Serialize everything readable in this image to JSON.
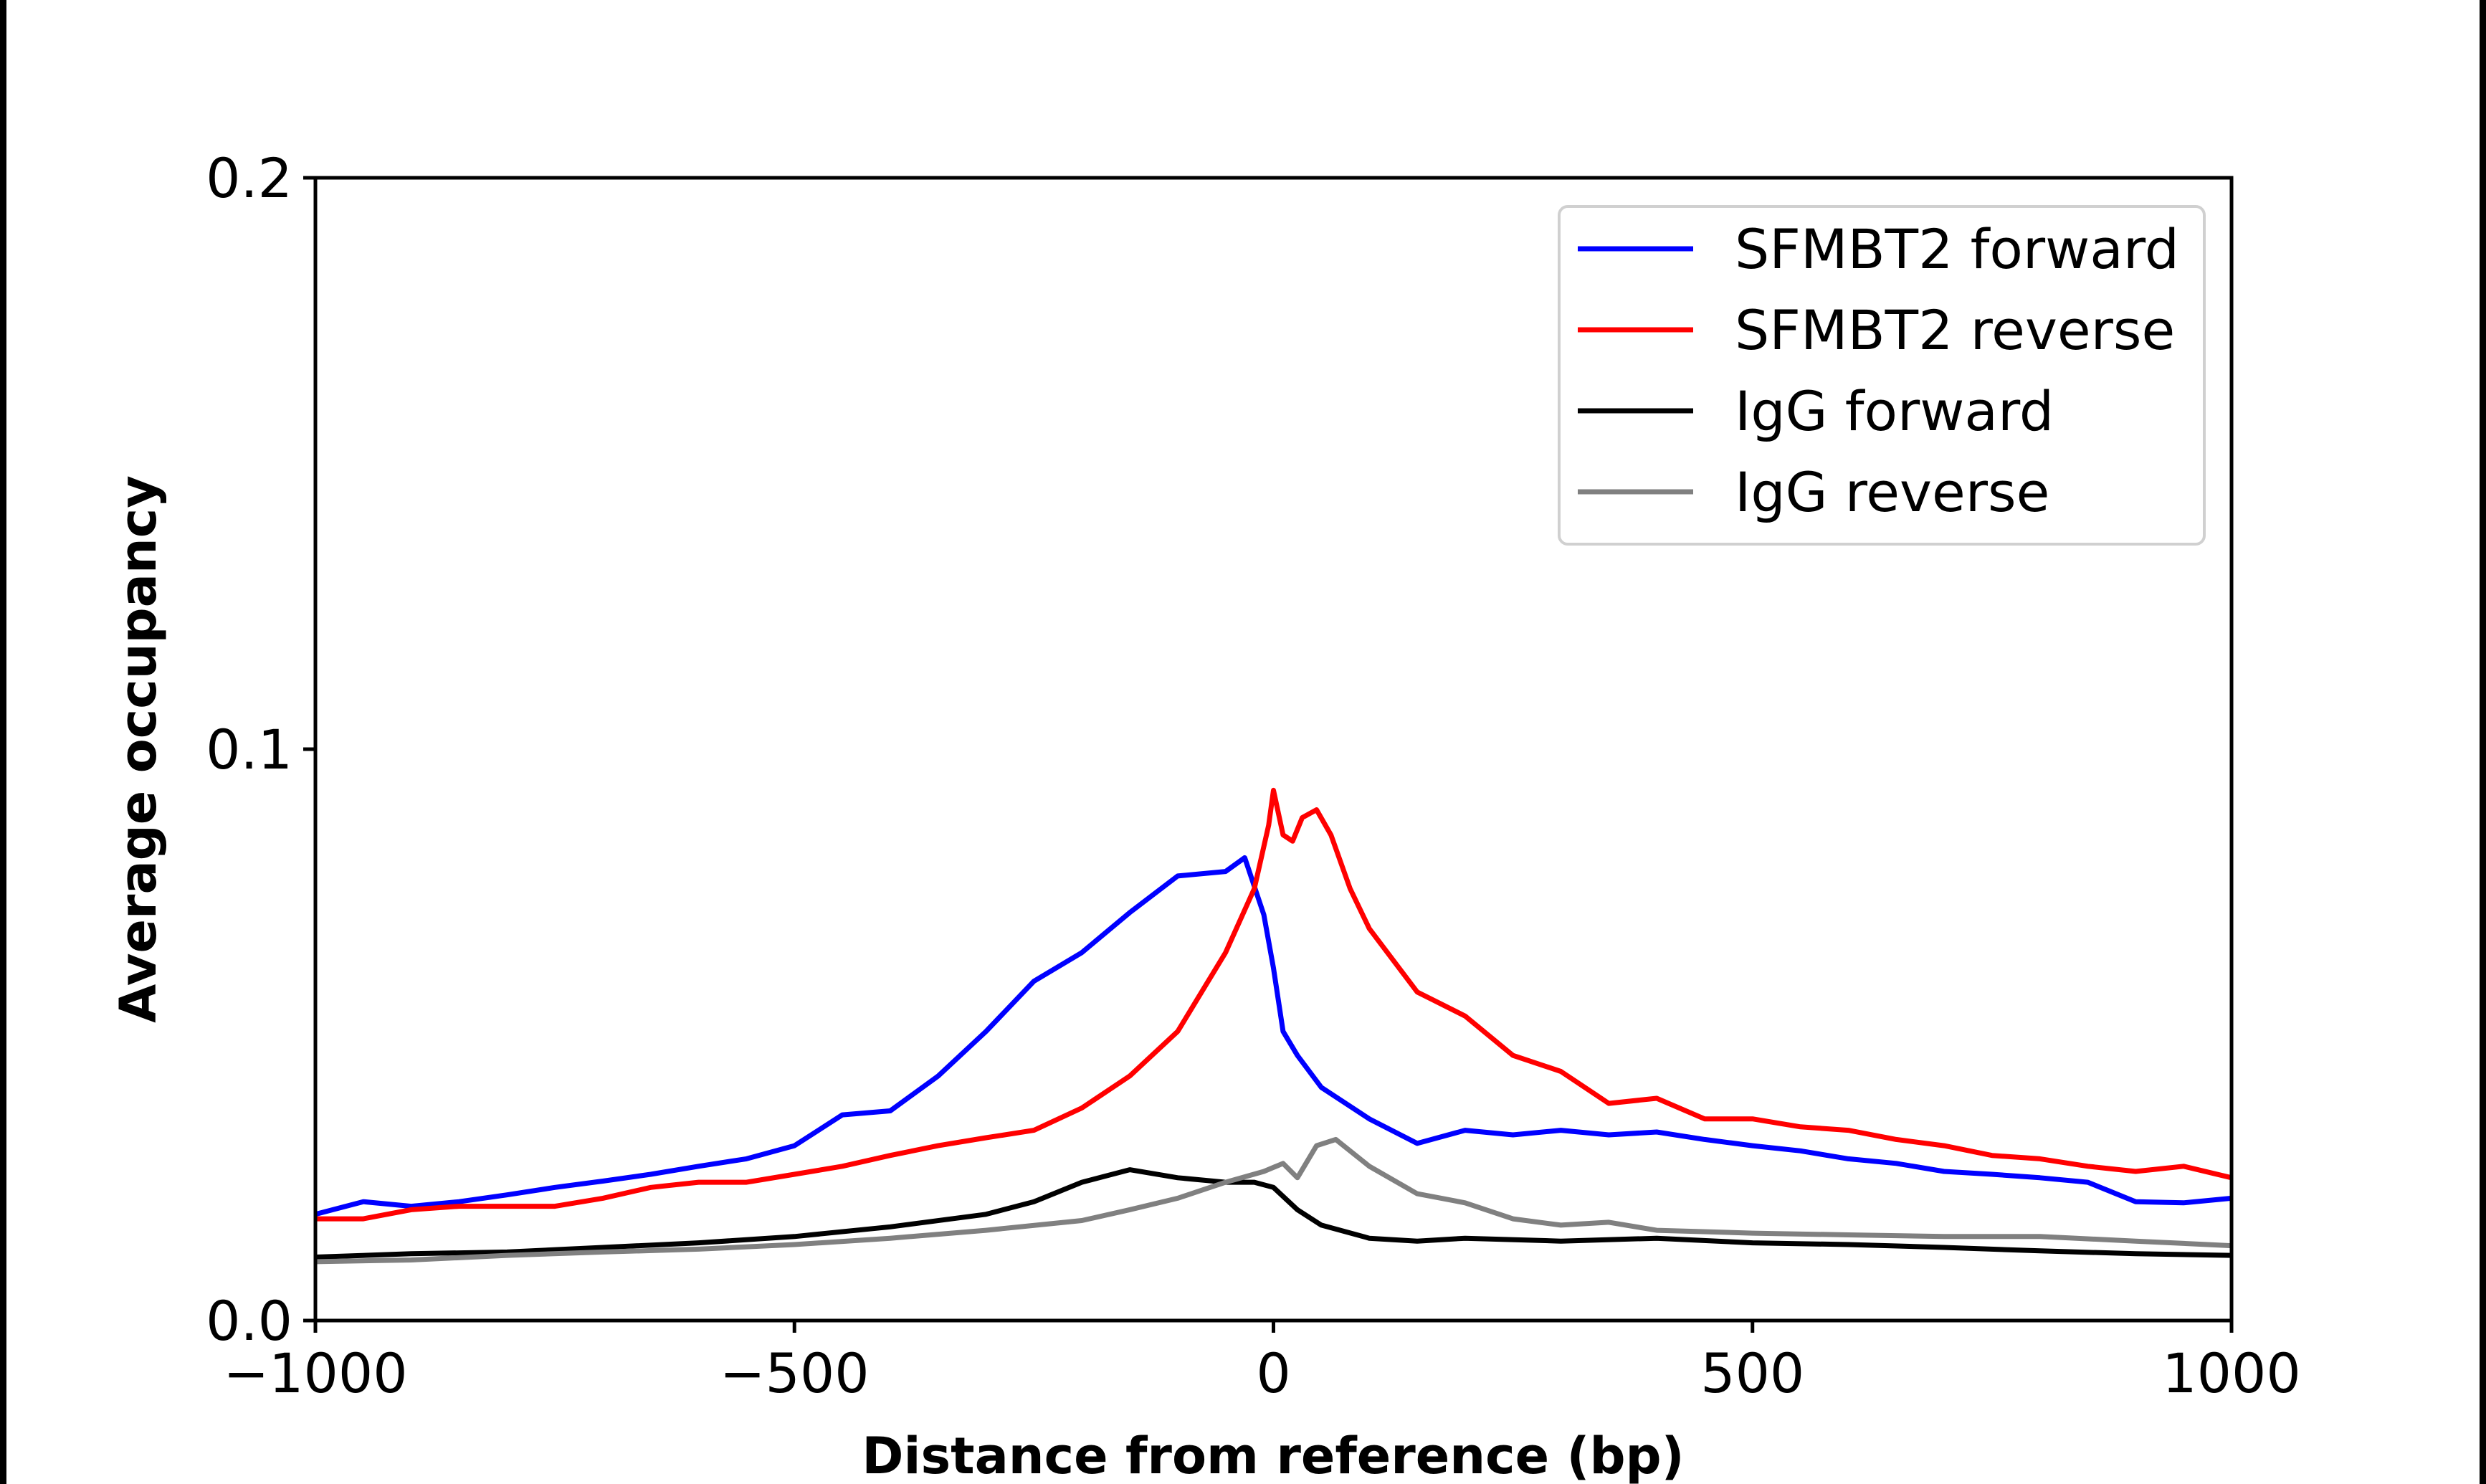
{
  "chart_data": {
    "type": "line",
    "title": "",
    "xlabel": "Distance from reference (bp)",
    "ylabel": "Average occupancy",
    "xlim": [
      -1000,
      1000
    ],
    "ylim": [
      0,
      0.2
    ],
    "xticks": [
      -1000,
      -500,
      0,
      500,
      1000
    ],
    "xtick_labels": [
      "−1000",
      "−500",
      "0",
      "500",
      "1000"
    ],
    "yticks": [
      0,
      0.1,
      0.2
    ],
    "ytick_labels": [
      "0.0",
      "0.1",
      "0.2"
    ],
    "grid": false,
    "legend_position": "top-right",
    "series": [
      {
        "name": "SFMBT2 forward",
        "color": "#0000ff",
        "x": [
          -1000,
          -950,
          -900,
          -850,
          -800,
          -750,
          -700,
          -650,
          -600,
          -550,
          -500,
          -450,
          -400,
          -350,
          -300,
          -250,
          -200,
          -150,
          -100,
          -50,
          -30,
          -10,
          0,
          10,
          25,
          50,
          100,
          150,
          200,
          250,
          300,
          350,
          400,
          450,
          500,
          550,
          600,
          650,
          700,
          750,
          800,
          850,
          900,
          950,
          1000
        ],
        "y": [
          0.0186,
          0.0208,
          0.02,
          0.0208,
          0.022,
          0.0233,
          0.0244,
          0.0256,
          0.027,
          0.0283,
          0.0306,
          0.036,
          0.0367,
          0.0428,
          0.0506,
          0.0594,
          0.0644,
          0.0714,
          0.0778,
          0.0786,
          0.081,
          0.071,
          0.0617,
          0.0506,
          0.0464,
          0.0408,
          0.0353,
          0.031,
          0.0333,
          0.0325,
          0.0333,
          0.0325,
          0.033,
          0.0317,
          0.0306,
          0.0297,
          0.0283,
          0.0275,
          0.0261,
          0.0256,
          0.025,
          0.0242,
          0.0208,
          0.0206,
          0.0214
        ]
      },
      {
        "name": "SFMBT2 reverse",
        "color": "#ff0000",
        "x": [
          -1000,
          -950,
          -900,
          -850,
          -800,
          -750,
          -700,
          -650,
          -600,
          -550,
          -500,
          -450,
          -400,
          -350,
          -300,
          -250,
          -200,
          -150,
          -100,
          -50,
          -20,
          -5,
          0,
          10,
          20,
          30,
          45,
          60,
          80,
          100,
          150,
          200,
          250,
          300,
          350,
          400,
          450,
          500,
          550,
          600,
          650,
          700,
          750,
          800,
          850,
          900,
          950,
          1000
        ],
        "y": [
          0.0178,
          0.0178,
          0.0194,
          0.02,
          0.02,
          0.02,
          0.0214,
          0.0233,
          0.0242,
          0.0242,
          0.0256,
          0.027,
          0.0289,
          0.0306,
          0.032,
          0.0333,
          0.0372,
          0.0428,
          0.0506,
          0.0644,
          0.0756,
          0.0867,
          0.0928,
          0.085,
          0.0839,
          0.088,
          0.0894,
          0.085,
          0.0756,
          0.0686,
          0.0575,
          0.0533,
          0.0464,
          0.0436,
          0.038,
          0.0389,
          0.0353,
          0.0353,
          0.0339,
          0.0333,
          0.0317,
          0.0306,
          0.0289,
          0.0283,
          0.027,
          0.0261,
          0.027,
          0.025
        ]
      },
      {
        "name": "IgG forward",
        "color": "#000000",
        "x": [
          -1000,
          -900,
          -800,
          -700,
          -600,
          -500,
          -400,
          -300,
          -250,
          -200,
          -150,
          -100,
          -50,
          -20,
          0,
          25,
          50,
          100,
          150,
          200,
          300,
          400,
          500,
          600,
          700,
          800,
          900,
          1000
        ],
        "y": [
          0.0111,
          0.0117,
          0.012,
          0.0128,
          0.0136,
          0.0147,
          0.0164,
          0.0186,
          0.0208,
          0.0242,
          0.0264,
          0.025,
          0.0242,
          0.0242,
          0.0233,
          0.0194,
          0.0167,
          0.0144,
          0.0139,
          0.0144,
          0.0139,
          0.0144,
          0.0136,
          0.0133,
          0.0128,
          0.0122,
          0.0117,
          0.0114
        ]
      },
      {
        "name": "IgG reverse",
        "color": "#808080",
        "x": [
          -1000,
          -900,
          -800,
          -700,
          -600,
          -500,
          -400,
          -300,
          -200,
          -150,
          -100,
          -50,
          -10,
          10,
          25,
          45,
          65,
          100,
          150,
          200,
          250,
          300,
          350,
          400,
          500,
          600,
          700,
          800,
          900,
          1000
        ],
        "y": [
          0.0103,
          0.0106,
          0.0114,
          0.012,
          0.0125,
          0.0133,
          0.0144,
          0.0158,
          0.0175,
          0.0194,
          0.0214,
          0.0242,
          0.0261,
          0.0275,
          0.025,
          0.0306,
          0.0317,
          0.027,
          0.0222,
          0.0206,
          0.0178,
          0.0167,
          0.0172,
          0.0158,
          0.0153,
          0.015,
          0.0147,
          0.0147,
          0.0139,
          0.0131
        ]
      }
    ]
  }
}
